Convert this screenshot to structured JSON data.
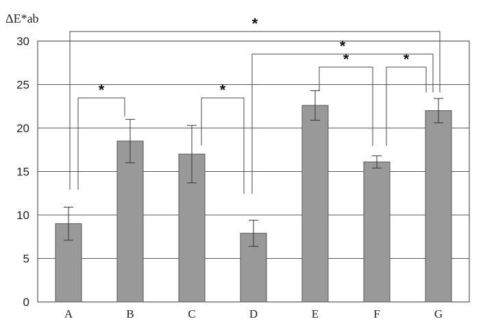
{
  "chart_data": {
    "type": "bar",
    "title": "",
    "xlabel": "",
    "ylabel": "ΔE*ab",
    "categories": [
      "A",
      "B",
      "C",
      "D",
      "E",
      "F",
      "G"
    ],
    "values": [
      9.0,
      18.5,
      17.0,
      7.9,
      22.6,
      16.1,
      22.0
    ],
    "error": [
      1.9,
      2.5,
      3.3,
      1.5,
      1.7,
      0.7,
      1.4
    ],
    "ylim": [
      0,
      30
    ],
    "yticks": [
      "0",
      "5",
      "10",
      "15",
      "20",
      "25",
      "30"
    ],
    "grid": true,
    "legend": "none",
    "colors": {
      "bar": "#999999",
      "bar_stroke": "#555555",
      "axis": "#333333",
      "grid": "#555555",
      "error": "#333333",
      "bracket": "#444444"
    },
    "significance": [
      {
        "from": "A",
        "to": "B",
        "label": "*"
      },
      {
        "from": "C",
        "to": "D",
        "label": "*"
      },
      {
        "from": "E",
        "to": "F",
        "label": "*"
      },
      {
        "from": "F",
        "to": "G",
        "label": "*"
      },
      {
        "from": "D",
        "to": "G",
        "label": "*"
      },
      {
        "from": "A",
        "to": "G",
        "label": "*"
      }
    ]
  }
}
